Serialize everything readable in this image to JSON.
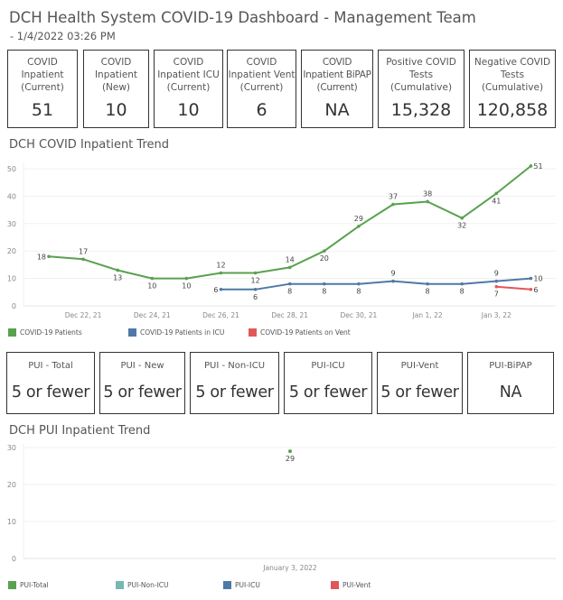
{
  "header": {
    "title": "DCH Health System COVID-19 Dashboard - Management Team",
    "subtitle": "- 1/4/2022 03:26 PM"
  },
  "kpis": [
    {
      "label": "COVID\nInpatient\n(Current)",
      "value": "51"
    },
    {
      "label": "COVID\nInpatient\n(New)",
      "value": "10"
    },
    {
      "label": "COVID\nInpatient ICU\n(Current)",
      "value": "10"
    },
    {
      "label": "COVID\nInpatient Vent\n(Current)",
      "value": "6"
    },
    {
      "label": "COVID\nInpatient BiPAP\n(Current)",
      "value": "NA"
    },
    {
      "label": "Positive COVID\nTests\n(Cumulative)",
      "value": "15,328"
    },
    {
      "label": "Negative COVID\nTests\n(Cumulative)",
      "value": "120,858"
    }
  ],
  "pui_kpis": [
    {
      "label": "PUI - Total",
      "value": "5 or fewer"
    },
    {
      "label": "PUI - New",
      "value": "5 or fewer"
    },
    {
      "label": "PUI - Non-ICU",
      "value": "5 or fewer"
    },
    {
      "label": "PUI-ICU",
      "value": "5 or fewer"
    },
    {
      "label": "PUI-Vent",
      "value": "5 or fewer"
    },
    {
      "label": "PUI-BiPAP",
      "value": "NA"
    }
  ],
  "chart_data": [
    {
      "type": "line",
      "title": "DCH COVID Inpatient Trend",
      "x": [
        "Dec 21, 21",
        "Dec 22, 21",
        "Dec 23, 21",
        "Dec 24, 21",
        "Dec 25, 21",
        "Dec 26, 21",
        "Dec 27, 21",
        "Dec 28, 21",
        "Dec 29, 21",
        "Dec 30, 21",
        "Dec 31, 21",
        "Jan 1, 22",
        "Jan 2, 22",
        "Jan 3, 22",
        "Jan 4, 22"
      ],
      "xticks": [
        "Dec 22, 21",
        "Dec 24, 21",
        "Dec 26, 21",
        "Dec 28, 21",
        "Dec 30, 21",
        "Jan 1, 22",
        "Jan 3, 22"
      ],
      "yticks": [
        0,
        10,
        20,
        30,
        40,
        50
      ],
      "ylim": [
        0,
        50
      ],
      "grid": true,
      "legend": "bottom",
      "series": [
        {
          "name": "COVID-19 Patients",
          "color": "#59a14f",
          "values": [
            18,
            17,
            13,
            10,
            10,
            12,
            12,
            14,
            20,
            29,
            37,
            38,
            32,
            41,
            51
          ]
        },
        {
          "name": "COVID-19 Patients in ICU",
          "color": "#4e79a7",
          "values": [
            null,
            null,
            null,
            null,
            null,
            6,
            6,
            8,
            8,
            8,
            9,
            8,
            8,
            9,
            10
          ]
        },
        {
          "name": "COVID-19 Patients on Vent",
          "color": "#e15759",
          "values": [
            null,
            null,
            null,
            null,
            null,
            null,
            null,
            null,
            null,
            null,
            null,
            null,
            null,
            7,
            6
          ]
        }
      ]
    },
    {
      "type": "line",
      "title": "DCH PUI Inpatient Trend",
      "x": [
        "January 3, 2022"
      ],
      "xticks": [
        "January 3, 2022"
      ],
      "yticks": [
        0,
        10,
        20,
        30
      ],
      "ylim": [
        0,
        30
      ],
      "grid": true,
      "legend": "bottom",
      "series": [
        {
          "name": "PUI-Total",
          "color": "#59a14f",
          "values": [
            29
          ]
        },
        {
          "name": "PUI-Non-ICU",
          "color": "#76b7b2",
          "values": [
            null
          ]
        },
        {
          "name": "PUI-ICU",
          "color": "#4e79a7",
          "values": [
            null
          ]
        },
        {
          "name": "PUI-Vent",
          "color": "#e15759",
          "values": [
            null
          ]
        }
      ]
    }
  ]
}
